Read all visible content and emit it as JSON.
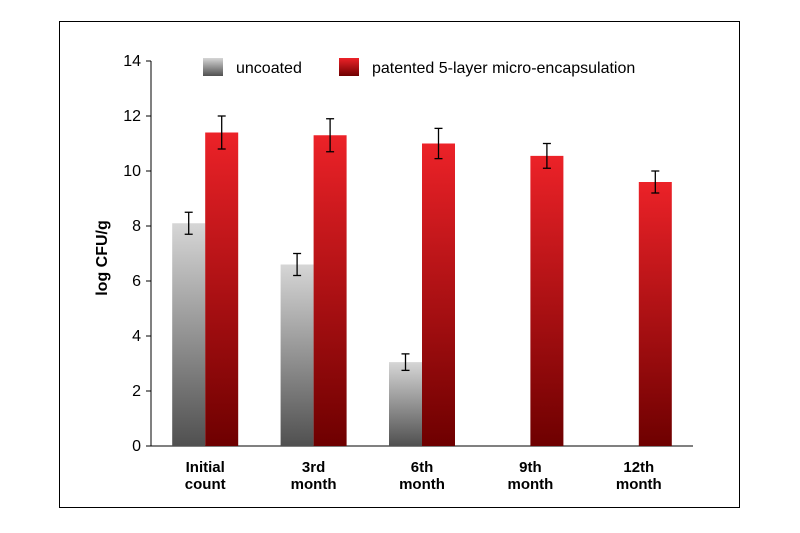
{
  "chart_data": {
    "type": "bar",
    "ylabel": "log CFU/g",
    "xlabel": "",
    "ylim": [
      0,
      14
    ],
    "yticks": [
      0,
      2,
      4,
      6,
      8,
      10,
      12,
      14
    ],
    "legend_position": "top",
    "grid": false,
    "categories": [
      [
        "Initial",
        "count"
      ],
      [
        "3rd",
        "month"
      ],
      [
        "6th",
        "month"
      ],
      [
        "9th",
        "month"
      ],
      [
        "12th",
        "month"
      ]
    ],
    "series": [
      {
        "name": "uncoated",
        "values": [
          8.1,
          6.6,
          3.05,
          null,
          null
        ],
        "errors": [
          0.4,
          0.4,
          0.3,
          null,
          null
        ],
        "color_top": "#d6d6d6",
        "color_bottom": "#505050"
      },
      {
        "name": "patented 5-layer micro-encapsulation",
        "values": [
          11.4,
          11.3,
          11.0,
          10.55,
          9.6
        ],
        "errors": [
          0.6,
          0.6,
          0.55,
          0.45,
          0.4
        ],
        "color_top": "#ec2228",
        "color_bottom": "#6e0000"
      }
    ]
  }
}
